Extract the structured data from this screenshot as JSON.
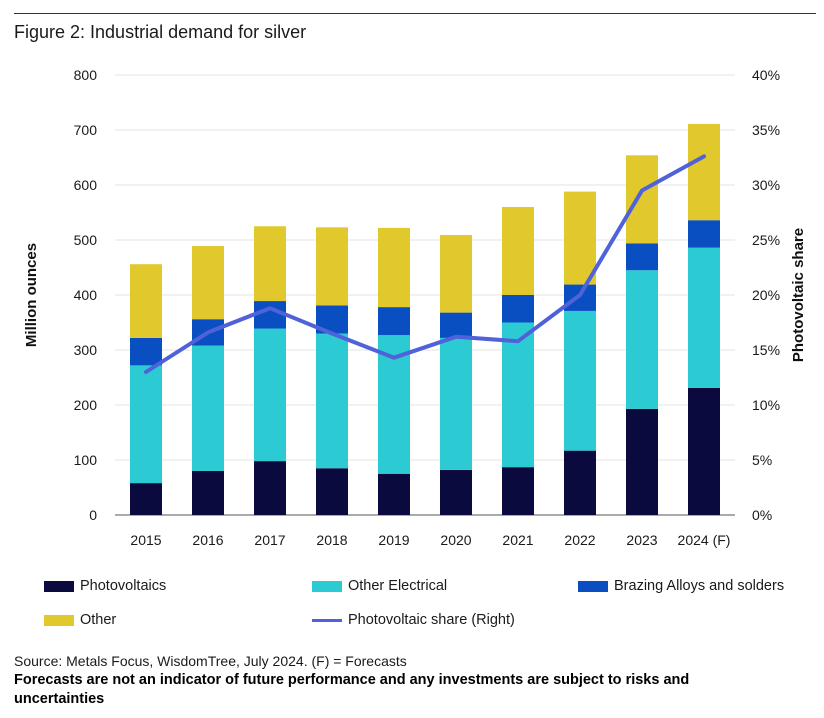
{
  "figure": {
    "title": "Figure 2: Industrial demand for silver",
    "source": "Source: Metals Focus, WisdomTree, July 2024. (F) = Forecasts",
    "disclaimer": "Forecasts are not an indicator of future performance and any investments are subject to risks and uncertainties"
  },
  "colors": {
    "photovoltaics": "#0b0a3e",
    "other_electrical": "#2ccbd3",
    "brazing": "#0a4fc1",
    "other": "#e0c82d",
    "share_line": "#5062d9",
    "grid": "#e3e3e3"
  },
  "chart_data": {
    "type": "bar",
    "stacked": true,
    "title": "Figure 2: Industrial demand for silver",
    "categories": [
      "2015",
      "2016",
      "2017",
      "2018",
      "2019",
      "2020",
      "2021",
      "2022",
      "2023",
      "2024 (F)"
    ],
    "ylabel": "Million ounces",
    "ylabel_right": "Photovoltaic share",
    "ylim": [
      0,
      800
    ],
    "y_ticks": [
      "0",
      "100",
      "200",
      "300",
      "400",
      "500",
      "600",
      "700",
      "800"
    ],
    "ylim_right": [
      0,
      40
    ],
    "y_ticks_right": [
      "0%",
      "5%",
      "10%",
      "15%",
      "20%",
      "25%",
      "30%",
      "35%",
      "40%"
    ],
    "series": [
      {
        "name": "Photovoltaics",
        "color_key": "photovoltaics",
        "values": [
          58,
          80,
          98,
          85,
          75,
          82,
          87,
          117,
          193,
          231
        ]
      },
      {
        "name": "Other Electrical",
        "color_key": "other_electrical",
        "values": [
          214,
          228,
          241,
          245,
          252,
          240,
          263,
          254,
          252,
          255
        ]
      },
      {
        "name": "Brazing Alloys and solders",
        "color_key": "brazing",
        "values": [
          50,
          48,
          50,
          51,
          51,
          46,
          50,
          48,
          49,
          50
        ]
      },
      {
        "name": "Other",
        "color_key": "other",
        "values": [
          134,
          133,
          136,
          142,
          144,
          141,
          160,
          169,
          160,
          175
        ]
      }
    ],
    "line_series": {
      "name": "Photovoltaic share (Right)",
      "color_key": "share_line",
      "axis": "right",
      "values": [
        13.0,
        16.6,
        18.8,
        16.5,
        14.3,
        16.2,
        15.8,
        20.0,
        29.5,
        32.6
      ]
    },
    "legend": [
      "Photovoltaics",
      "Other Electrical",
      "Brazing Alloys and solders",
      "Other",
      "Photovoltaic share (Right)"
    ],
    "legend_position": "bottom",
    "grid": true
  }
}
